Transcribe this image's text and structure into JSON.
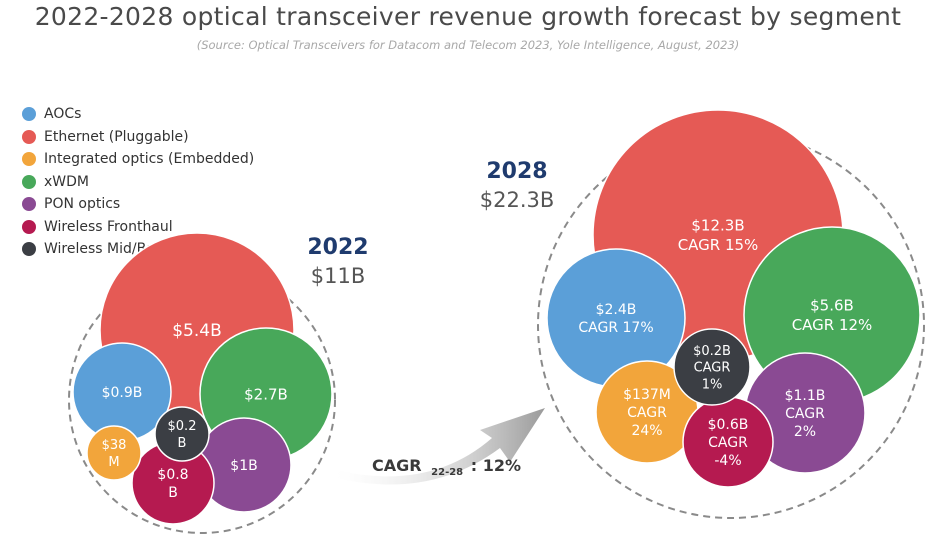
{
  "chart_data": {
    "type": "bubble",
    "title": "2022-2028 optical transceiver revenue growth forecast by segment",
    "subtitle": "(Source: Optical Transceivers for Datacom and Telecom 2023, Yole Intelligence, August, 2023)",
    "series": [
      {
        "name": "AOCs",
        "color": "#5b9fd8"
      },
      {
        "name": "Ethernet (Pluggable)",
        "color": "#e55a55"
      },
      {
        "name": "Integrated optics (Embedded)",
        "color": "#f2a53b"
      },
      {
        "name": "xWDM",
        "color": "#48a85a"
      },
      {
        "name": "PON optics",
        "color": "#8a4a93"
      },
      {
        "name": "Wireless Fronthaul",
        "color": "#b51a50"
      },
      {
        "name": "Wireless Mid/Backhaul",
        "color": "#3b3e44"
      }
    ],
    "years": [
      {
        "year": "2022",
        "total": "$11B",
        "values": {
          "AOCs": "$0.9B",
          "Ethernet (Pluggable)": "$5.4B",
          "Integrated optics (Embedded)": "$38M",
          "xWDM": "$2.7B",
          "PON optics": "$1B",
          "Wireless Fronthaul": "$0.8B",
          "Wireless Mid/Backhaul": "$0.2B"
        }
      },
      {
        "year": "2028",
        "total": "$22.3B",
        "values": {
          "AOCs": "$2.4B",
          "Ethernet (Pluggable)": "$12.3B",
          "Integrated optics (Embedded)": "$137M",
          "xWDM": "$5.6B",
          "PON optics": "$1.1B",
          "Wireless Fronthaul": "$0.6B",
          "Wireless Mid/Backhaul": "$0.2B"
        },
        "cagr": {
          "AOCs": "CAGR 17%",
          "Ethernet (Pluggable)": "CAGR 15%",
          "Integrated optics (Embedded)": "CAGR 24%",
          "xWDM": "CAGR 12%",
          "PON optics": "CAGR 2%",
          "Wireless Fronthaul": "CAGR -4%",
          "Wireless Mid/Backhaul": "CAGR 1%"
        }
      }
    ],
    "overall_cagr": {
      "label": "CAGR",
      "period": "22-28",
      "value": ": 12%"
    }
  }
}
